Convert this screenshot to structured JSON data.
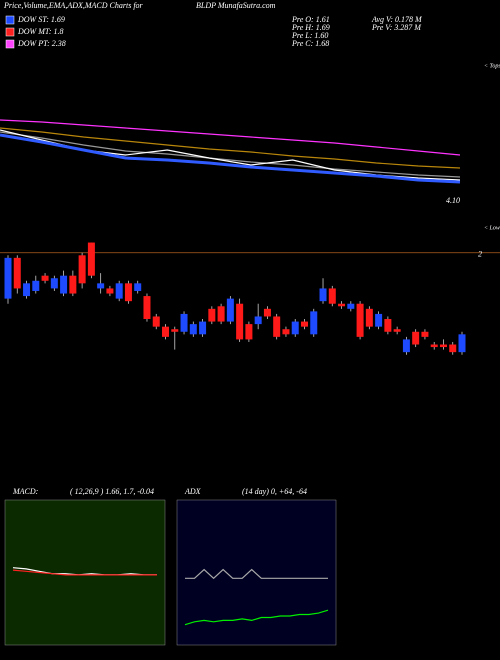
{
  "header": {
    "title": "Price,Volume,EMA,ADX,MACD Charts for",
    "site": "BLDP MunafaSutra.com"
  },
  "legend": [
    {
      "name": "DOW ST: 1.69",
      "color": "#1e4bff"
    },
    {
      "name": "DOW MT: 1.8",
      "color": "#ff2020"
    },
    {
      "name": "DOW PT: 2.38",
      "color": "#ff44ff"
    }
  ],
  "stats": [
    [
      "Pre  O: 1.61",
      "Pre  H: 1.69",
      "Pre  L: 1.60",
      "Pre  C: 1.68"
    ],
    [
      "Avg V: 0.178 M",
      "Pre  V: 3.287 M"
    ]
  ],
  "chart_data": [
    {
      "type": "line",
      "annotations": [
        "< Tops",
        "< Lows"
      ],
      "ylim": [
        3.75,
        5.35
      ],
      "yticks": [
        {
          "value": 4.1,
          "label": "4.10"
        }
      ],
      "series": [
        {
          "color": "#ff33ff",
          "values": [
            4.85,
            4.83,
            4.8,
            4.77,
            4.74,
            4.71,
            4.68,
            4.65,
            4.62,
            4.58,
            4.54,
            4.5
          ]
        },
        {
          "color": "#b8860b",
          "values": [
            4.77,
            4.73,
            4.68,
            4.64,
            4.6,
            4.56,
            4.53,
            4.49,
            4.46,
            4.42,
            4.39,
            4.37
          ]
        },
        {
          "color": "#999999",
          "values": [
            4.73,
            4.67,
            4.6,
            4.54,
            4.51,
            4.47,
            4.43,
            4.4,
            4.36,
            4.33,
            4.3,
            4.28
          ]
        },
        {
          "color": "#ffffff",
          "values": [
            4.75,
            4.65,
            4.55,
            4.5,
            4.55,
            4.47,
            4.4,
            4.45,
            4.35,
            4.3,
            4.27,
            4.25
          ]
        },
        {
          "color": "#2f5bff",
          "values": [
            4.7,
            4.63,
            4.55,
            4.47,
            4.45,
            4.42,
            4.38,
            4.35,
            4.32,
            4.29,
            4.25,
            4.23
          ]
        }
      ]
    },
    {
      "type": "candlestick",
      "ylim": [
        1.54,
        2.05
      ],
      "yticks": [
        2
      ],
      "up_color": "#1e4bff",
      "down_color": "#ff1a1a",
      "open": [
        1.82,
        1.98,
        1.83,
        1.85,
        1.91,
        1.86,
        1.84,
        1.91,
        1.99,
        2.04,
        1.86,
        1.86,
        1.82,
        1.88,
        1.85,
        1.83,
        1.75,
        1.71,
        1.7,
        1.69,
        1.68,
        1.68,
        1.78,
        1.79,
        1.73,
        1.8,
        1.72,
        1.72,
        1.78,
        1.75,
        1.7,
        1.68,
        1.73,
        1.68,
        1.81,
        1.86,
        1.8,
        1.78,
        1.8,
        1.78,
        1.71,
        1.74,
        1.7,
        1.61,
        1.69,
        1.69,
        1.64,
        1.64,
        1.64,
        1.61
      ],
      "high": [
        1.99,
        1.99,
        1.89,
        1.91,
        1.92,
        1.91,
        1.93,
        1.93,
        2.0,
        2.04,
        1.92,
        1.87,
        1.89,
        1.89,
        1.89,
        1.84,
        1.76,
        1.72,
        1.71,
        1.77,
        1.73,
        1.74,
        1.79,
        1.8,
        1.83,
        1.82,
        1.73,
        1.8,
        1.79,
        1.76,
        1.71,
        1.74,
        1.74,
        1.78,
        1.9,
        1.87,
        1.81,
        1.81,
        1.81,
        1.79,
        1.77,
        1.75,
        1.71,
        1.67,
        1.7,
        1.7,
        1.65,
        1.66,
        1.65,
        1.69
      ],
      "low": [
        1.8,
        1.84,
        1.82,
        1.84,
        1.88,
        1.85,
        1.83,
        1.83,
        1.86,
        1.9,
        1.84,
        1.83,
        1.81,
        1.8,
        1.84,
        1.73,
        1.7,
        1.66,
        1.62,
        1.68,
        1.67,
        1.67,
        1.72,
        1.72,
        1.72,
        1.65,
        1.65,
        1.7,
        1.74,
        1.66,
        1.67,
        1.67,
        1.7,
        1.67,
        1.8,
        1.79,
        1.78,
        1.77,
        1.66,
        1.7,
        1.7,
        1.68,
        1.68,
        1.6,
        1.63,
        1.66,
        1.62,
        1.62,
        1.6,
        1.6
      ],
      "close": [
        1.98,
        1.86,
        1.88,
        1.89,
        1.89,
        1.9,
        1.91,
        1.84,
        1.88,
        1.91,
        1.88,
        1.84,
        1.88,
        1.81,
        1.88,
        1.74,
        1.71,
        1.67,
        1.69,
        1.76,
        1.72,
        1.73,
        1.73,
        1.73,
        1.82,
        1.66,
        1.66,
        1.75,
        1.75,
        1.67,
        1.68,
        1.73,
        1.71,
        1.77,
        1.86,
        1.8,
        1.79,
        1.8,
        1.67,
        1.71,
        1.76,
        1.69,
        1.69,
        1.66,
        1.64,
        1.67,
        1.63,
        1.63,
        1.61,
        1.68
      ]
    },
    {
      "type": "line",
      "title": "MACD:",
      "subtitle": "( 12,26,9 ) 1.66, 1.7, -0.04",
      "background": "#0c2a00",
      "ylim": [
        -6,
        6
      ],
      "series": [
        {
          "color": "#ffffff",
          "values": [
            0.4,
            0.3,
            0.1,
            -0.1,
            -0.1,
            -0.2,
            -0.1,
            -0.2,
            -0.2,
            -0.1,
            -0.2,
            -0.2
          ]
        },
        {
          "color": "#ff2020",
          "values": [
            0.2,
            0.1,
            0.0,
            -0.1,
            -0.2,
            -0.2,
            -0.2,
            -0.2,
            -0.2,
            -0.2,
            -0.2,
            -0.2
          ]
        }
      ]
    },
    {
      "type": "line",
      "title": "ADX",
      "subtitle": "(14 day) 0, +64, -64",
      "background": "#000022",
      "ylim": [
        0,
        100
      ],
      "series": [
        {
          "color": "#aaaaaa",
          "values": [
            46,
            46,
            52,
            46,
            52,
            46,
            46,
            52,
            46,
            46,
            46,
            46,
            46,
            46,
            46,
            46
          ]
        },
        {
          "color": "#00ee00",
          "values": [
            14,
            16,
            17,
            16,
            17,
            17,
            18,
            17,
            19,
            19,
            20,
            20,
            21,
            21,
            22,
            24
          ]
        }
      ]
    }
  ]
}
